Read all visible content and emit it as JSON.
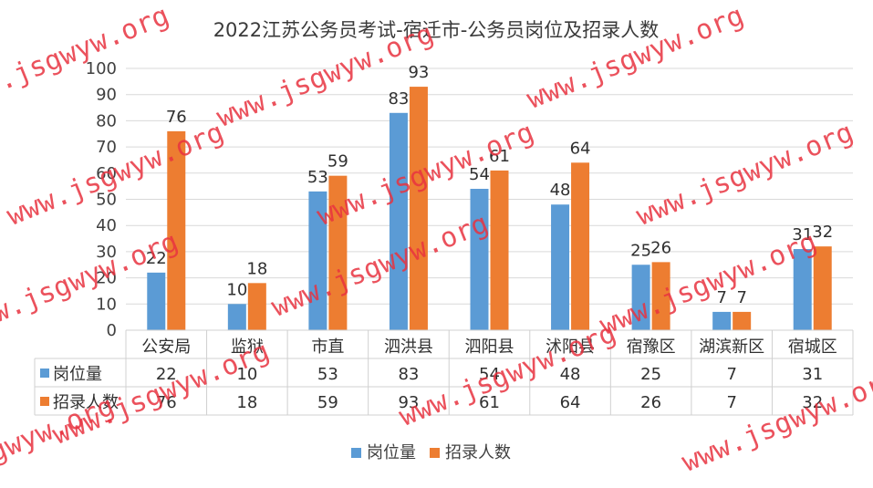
{
  "chart_data": {
    "type": "bar",
    "title": "2022江苏公务员考试-宿迁市-公务员岗位及招录人数",
    "categories": [
      "公安局",
      "监狱",
      "市直",
      "泗洪县",
      "泗阳县",
      "沭阳县",
      "宿豫区",
      "湖滨新区",
      "宿城区"
    ],
    "series": [
      {
        "name": "岗位量",
        "values": [
          22,
          10,
          53,
          83,
          54,
          48,
          25,
          7,
          31
        ],
        "color": "#5b9bd5"
      },
      {
        "name": "招录人数",
        "values": [
          76,
          18,
          59,
          93,
          61,
          64,
          26,
          7,
          32
        ],
        "color": "#ed7d31"
      }
    ],
    "ylim": [
      0,
      100
    ],
    "yticks": [
      0,
      10,
      20,
      30,
      40,
      50,
      60,
      70,
      80,
      90,
      100
    ],
    "grid": true,
    "legend": "bottom",
    "data_table": true
  },
  "watermark": {
    "text": "www.jsgwyw.org",
    "color": "#e8323f"
  }
}
